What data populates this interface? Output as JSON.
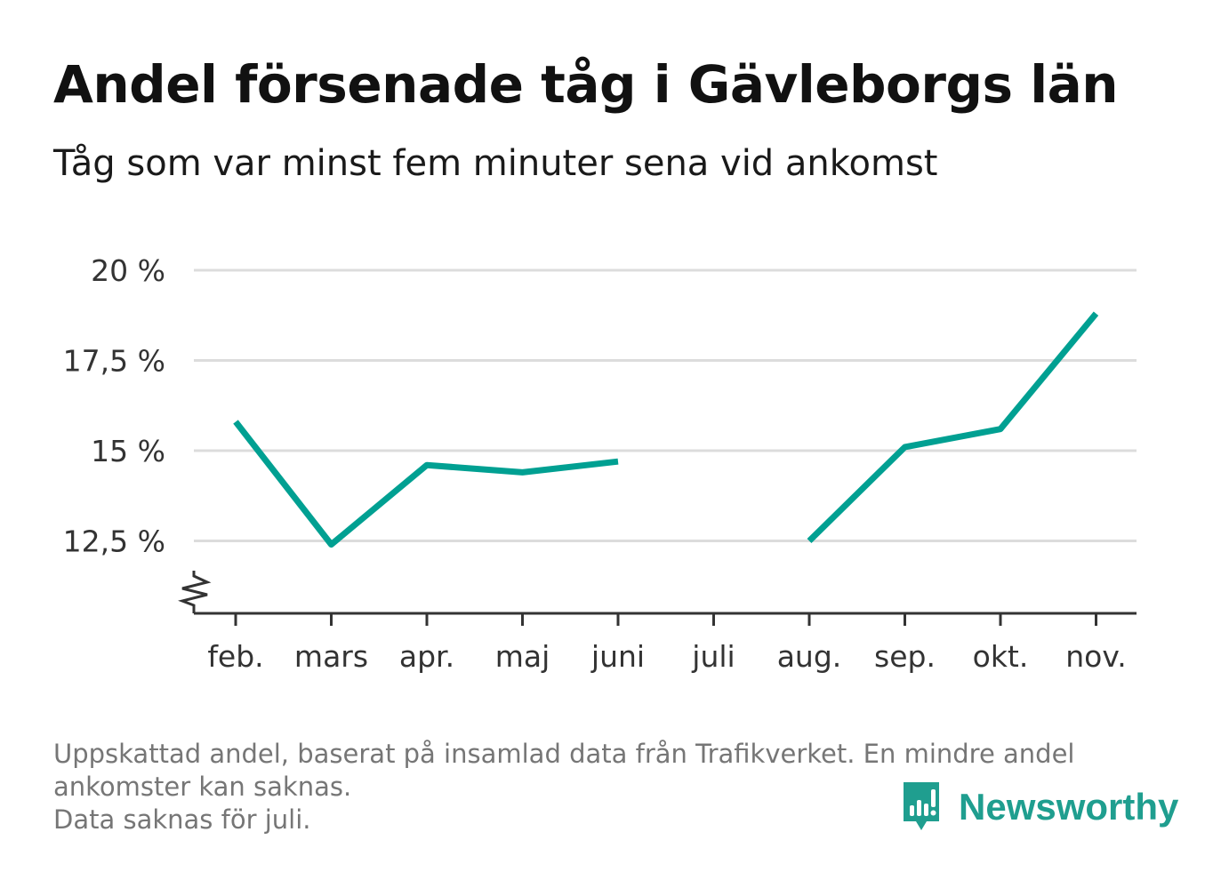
{
  "title": "Andel försenade tåg i Gävleborgs län",
  "subtitle": "Tåg som var minst fem minuter sena vid ankomst",
  "colors": {
    "line": "#00A092",
    "grid": "#dcdcdc",
    "axis": "#333333",
    "brand": "#1f9e8f"
  },
  "chart_data": {
    "type": "line",
    "title": "Andel försenade tåg i Gävleborgs län",
    "subtitle": "Tåg som var minst fem minuter sena vid ankomst",
    "xlabel": "",
    "ylabel": "",
    "categories": [
      "feb.",
      "mars",
      "apr.",
      "maj",
      "juni",
      "juli",
      "aug.",
      "sep.",
      "okt.",
      "nov."
    ],
    "series": [
      {
        "values": [
          15.8,
          12.4,
          14.6,
          14.4,
          14.7,
          null,
          12.5,
          15.1,
          15.6,
          18.8
        ]
      }
    ],
    "yticks": [
      12.5,
      15,
      17.5,
      20
    ],
    "ytick_labels": [
      "12,5 %",
      "15 %",
      "17,5 %",
      "20 %"
    ],
    "ylim": [
      10.5,
      20
    ],
    "axis_break": true,
    "grid": true
  },
  "footer": {
    "note1": "Uppskattad andel, baserat på insamlad data från Trafikverket. En mindre andel ankomster kan saknas.",
    "note2": "Data saknas för juli."
  },
  "brand": {
    "name": "Newsworthy",
    "icon": "newsworthy-logo-icon"
  }
}
